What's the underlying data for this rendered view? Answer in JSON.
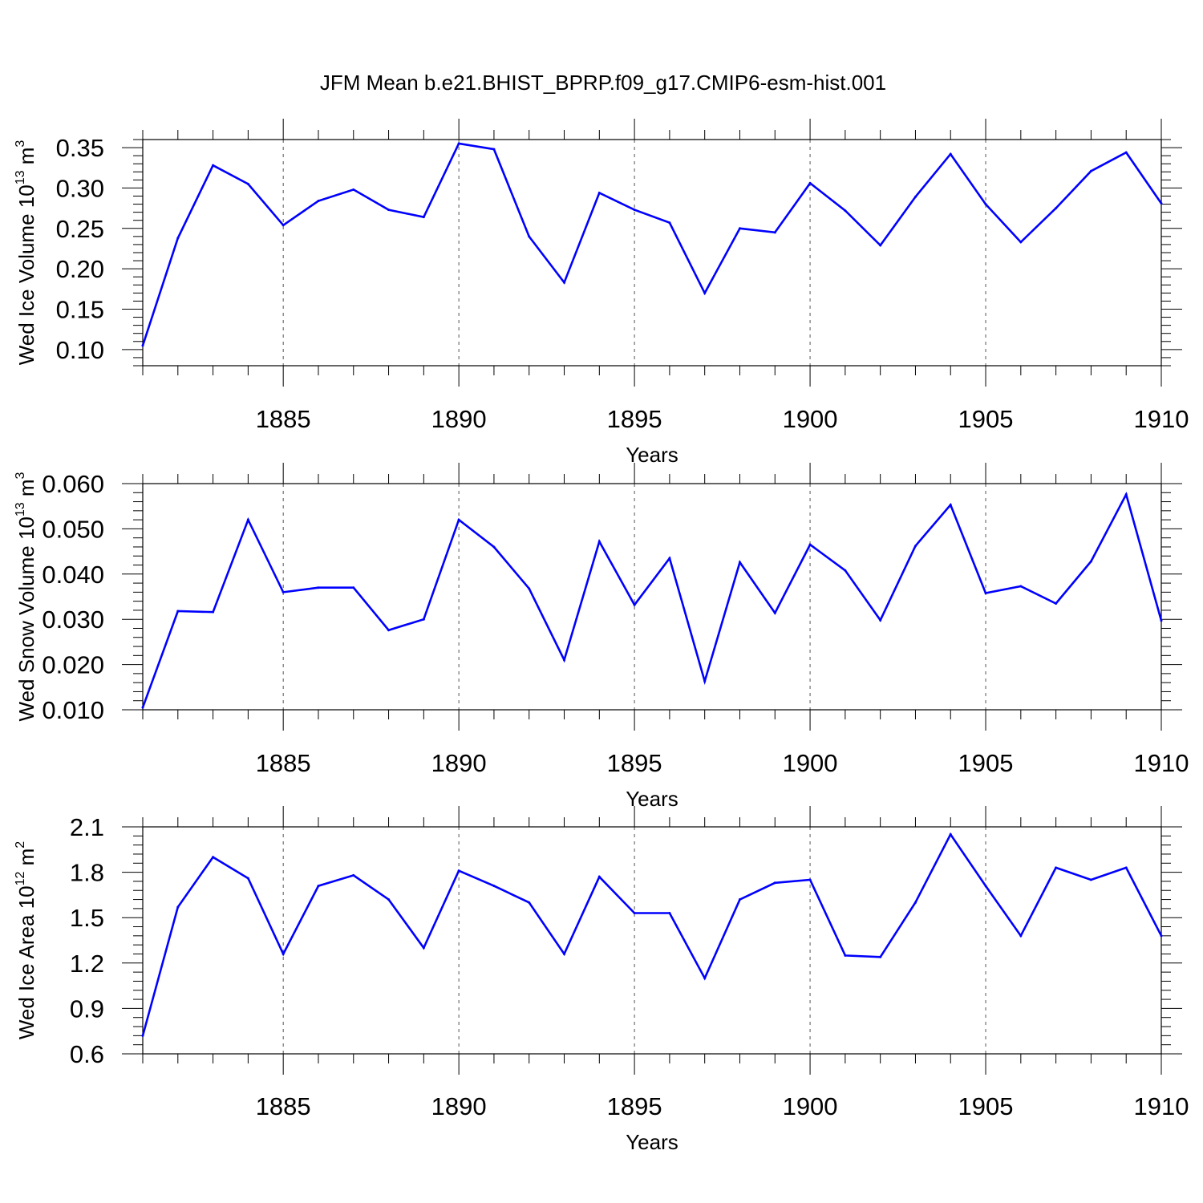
{
  "title": "JFM Mean b.e21.BHIST_BPRP.f09_g17.CMIP6-esm-hist.001",
  "chart_data": [
    {
      "type": "line",
      "xlabel": "Years",
      "ylabel": {
        "prefix": "Wed Ice Volume 10",
        "exp": "13",
        "unit": " m",
        "unit_exp": "3"
      },
      "xlim": [
        1881,
        1910
      ],
      "ylim": [
        0.08,
        0.36
      ],
      "xticks": [
        "1885",
        "1890",
        "1895",
        "1900",
        "1905",
        "1910"
      ],
      "yticks": [
        "0.10",
        "0.15",
        "0.20",
        "0.25",
        "0.30",
        "0.35"
      ],
      "grid": "x-dashed",
      "color": "#0000ff",
      "x": [
        1881,
        1882,
        1883,
        1884,
        1885,
        1886,
        1887,
        1888,
        1889,
        1890,
        1891,
        1892,
        1893,
        1894,
        1895,
        1896,
        1897,
        1898,
        1899,
        1900,
        1901,
        1902,
        1903,
        1904,
        1905,
        1906,
        1907,
        1908,
        1909,
        1910
      ],
      "values": [
        0.105,
        0.238,
        0.328,
        0.305,
        0.254,
        0.284,
        0.298,
        0.273,
        0.264,
        0.355,
        0.348,
        0.24,
        0.183,
        0.294,
        0.273,
        0.257,
        0.17,
        0.25,
        0.245,
        0.306,
        0.272,
        0.229,
        0.289,
        0.342,
        0.28,
        0.233,
        0.275,
        0.321,
        0.344,
        0.281
      ]
    },
    {
      "type": "line",
      "xlabel": "Years",
      "ylabel": {
        "prefix": "Wed Snow Volume 10",
        "exp": "13",
        "unit": " m",
        "unit_exp": "3"
      },
      "xlim": [
        1881,
        1910
      ],
      "ylim": [
        0.01,
        0.06
      ],
      "xticks": [
        "1885",
        "1890",
        "1895",
        "1900",
        "1905",
        "1910"
      ],
      "yticks": [
        "0.010",
        "0.020",
        "0.030",
        "0.040",
        "0.050",
        "0.060"
      ],
      "grid": "x-dashed",
      "color": "#0000ff",
      "x": [
        1881,
        1882,
        1883,
        1884,
        1885,
        1886,
        1887,
        1888,
        1889,
        1890,
        1891,
        1892,
        1893,
        1894,
        1895,
        1896,
        1897,
        1898,
        1899,
        1900,
        1901,
        1902,
        1903,
        1904,
        1905,
        1906,
        1907,
        1908,
        1909,
        1910
      ],
      "values": [
        0.0105,
        0.0318,
        0.0316,
        0.052,
        0.036,
        0.037,
        0.037,
        0.0276,
        0.03,
        0.052,
        0.046,
        0.0368,
        0.021,
        0.0472,
        0.0332,
        0.0435,
        0.0163,
        0.0426,
        0.0314,
        0.0465,
        0.0408,
        0.0298,
        0.0462,
        0.0553,
        0.0358,
        0.0373,
        0.0335,
        0.0428,
        0.0576,
        0.0297
      ]
    },
    {
      "type": "line",
      "xlabel": "Years",
      "ylabel": {
        "prefix": "Wed Ice Area 10",
        "exp": "12",
        "unit": " m",
        "unit_exp": "2"
      },
      "xlim": [
        1881,
        1910
      ],
      "ylim": [
        0.6,
        2.1
      ],
      "xticks": [
        "1885",
        "1890",
        "1895",
        "1900",
        "1905",
        "1910"
      ],
      "yticks": [
        "0.6",
        "0.9",
        "1.2",
        "1.5",
        "1.8",
        "2.1"
      ],
      "grid": "x-dashed",
      "color": "#0000ff",
      "x": [
        1881,
        1882,
        1883,
        1884,
        1885,
        1886,
        1887,
        1888,
        1889,
        1890,
        1891,
        1892,
        1893,
        1894,
        1895,
        1896,
        1897,
        1898,
        1899,
        1900,
        1901,
        1902,
        1903,
        1904,
        1905,
        1906,
        1907,
        1908,
        1909,
        1910
      ],
      "values": [
        0.72,
        1.57,
        1.9,
        1.76,
        1.26,
        1.71,
        1.78,
        1.62,
        1.3,
        1.81,
        1.71,
        1.6,
        1.26,
        1.77,
        1.53,
        1.53,
        1.1,
        1.62,
        1.73,
        1.75,
        1.25,
        1.24,
        1.6,
        2.05,
        1.71,
        1.38,
        1.83,
        1.75,
        1.83,
        1.38
      ]
    }
  ]
}
